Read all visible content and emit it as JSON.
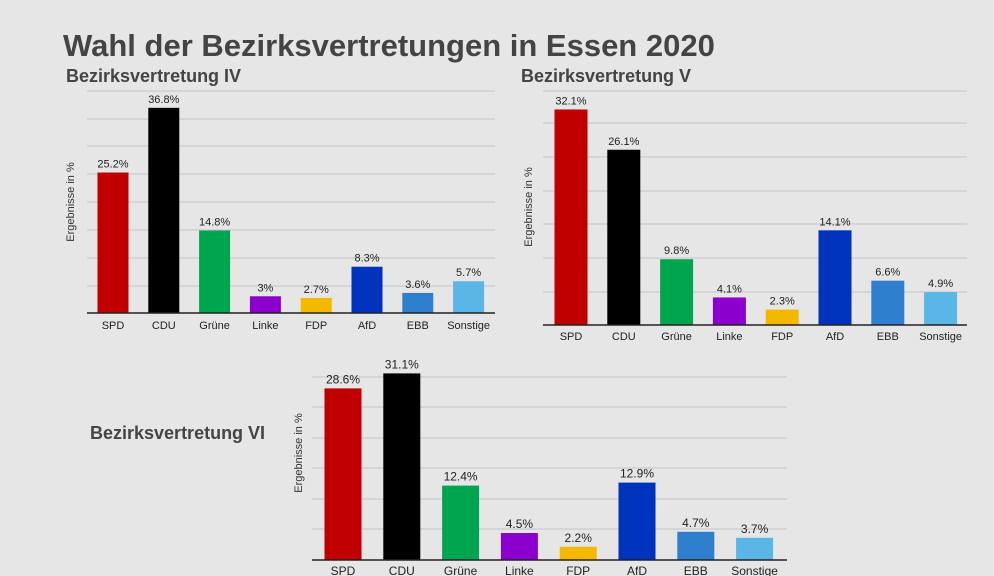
{
  "title": "Wahl der Bezirksvertretungen in Essen 2020",
  "colors": {
    "SPD": "#c00000",
    "CDU": "#000000",
    "Grüne": "#00a550",
    "Linke": "#8b00cc",
    "FDP": "#f5b800",
    "AfD": "#0033bb",
    "EBB": "#2f7fcf",
    "Sonstige": "#5ab6e6"
  },
  "chart_data": [
    {
      "type": "bar",
      "title": "Bezirksvertretung IV",
      "xlabel": "",
      "ylabel": "Ergebnisse in %",
      "categories": [
        "SPD",
        "CDU",
        "Grüne",
        "Linke",
        "FDP",
        "AfD",
        "EBB",
        "Sonstige"
      ],
      "values": [
        25.2,
        36.8,
        14.8,
        3,
        2.7,
        8.3,
        3.6,
        5.7
      ],
      "value_labels": [
        "25.2%",
        "36.8%",
        "14.8%",
        "3%",
        "2.7%",
        "8.3%",
        "3.6%",
        "5.7%"
      ],
      "ylim": [
        0,
        40
      ],
      "grid": true
    },
    {
      "type": "bar",
      "title": "Bezirksvertretung V",
      "xlabel": "",
      "ylabel": "Ergebnisse in %",
      "categories": [
        "SPD",
        "CDU",
        "Grüne",
        "Linke",
        "FDP",
        "AfD",
        "EBB",
        "Sonstige"
      ],
      "values": [
        32.1,
        26.1,
        9.8,
        4.1,
        2.3,
        14.1,
        6.6,
        4.9
      ],
      "value_labels": [
        "32.1%",
        "26.1%",
        "9.8%",
        "4.1%",
        "2.3%",
        "14.1%",
        "6.6%",
        "4.9%"
      ],
      "ylim": [
        0,
        35
      ],
      "grid": true
    },
    {
      "type": "bar",
      "title": "Bezirksvertretung VI",
      "xlabel": "",
      "ylabel": "Ergebnisse in %",
      "categories": [
        "SPD",
        "CDU",
        "Grüne",
        "Linke",
        "FDP",
        "AfD",
        "EBB",
        "Sonstige"
      ],
      "values": [
        28.6,
        31.1,
        12.4,
        4.5,
        2.2,
        12.9,
        4.7,
        3.7
      ],
      "value_labels": [
        "28.6%",
        "31.1%",
        "12.4%",
        "4.5%",
        "2.2%",
        "12.9%",
        "4.7%",
        "3.7%"
      ],
      "ylim": [
        0,
        35
      ],
      "grid": true
    }
  ]
}
